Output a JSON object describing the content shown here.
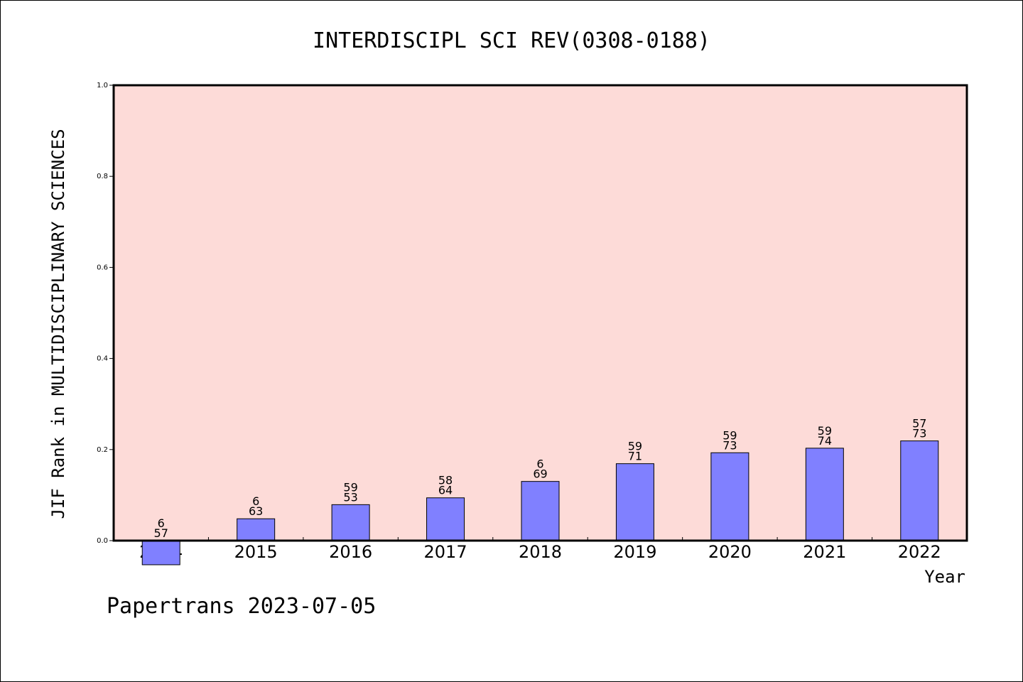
{
  "chart_data": {
    "type": "bar",
    "title": "INTERDISCIPL SCI REV(0308-0188)",
    "xlabel": "Year",
    "ylabel": "JIF Rank in MULTIDISCIPLINARY SCIENCES",
    "ylim": [
      0,
      1.0
    ],
    "yticks": [
      "0.0",
      "0.2",
      "0.4",
      "0.6",
      "0.8",
      "1.0"
    ],
    "grid": false,
    "categories": [
      "2014",
      "2015",
      "2016",
      "2017",
      "2018",
      "2019",
      "2020",
      "2021",
      "2022"
    ],
    "values": [
      -0.053,
      0.048,
      0.079,
      0.094,
      0.13,
      0.169,
      0.193,
      0.203,
      0.219
    ],
    "bar_labels": [
      [
        "6",
        "57"
      ],
      [
        "6",
        "63"
      ],
      [
        "59",
        "53"
      ],
      [
        "58",
        "64"
      ],
      [
        "6",
        "69"
      ],
      [
        "59",
        "71"
      ],
      [
        "59",
        "73"
      ],
      [
        "59",
        "74"
      ],
      [
        "57",
        "73"
      ]
    ],
    "colors": {
      "bar": "#8080ff",
      "plot_bg": "#fddbd8"
    },
    "footer": "Papertrans 2023-07-05"
  }
}
